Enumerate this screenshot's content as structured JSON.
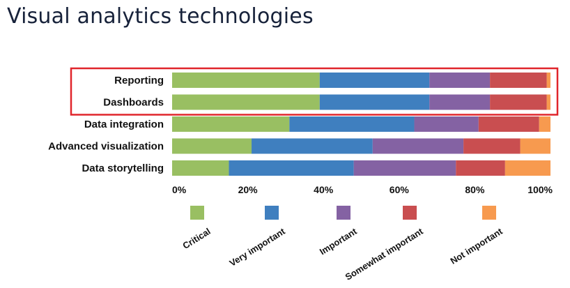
{
  "page_title": "Visual analytics technologies",
  "chart_data": {
    "type": "bar",
    "orientation": "horizontal",
    "stacked": true,
    "title": "Visual analytics technologies",
    "categories": [
      "Reporting",
      "Dashboards",
      "Data integration",
      "Advanced visualization",
      "Data storytelling"
    ],
    "series": [
      {
        "name": "Critical",
        "color": "#99bf62",
        "values": [
          39,
          39,
          31,
          21,
          15
        ]
      },
      {
        "name": "Very important",
        "color": "#3f7fbf",
        "values": [
          29,
          29,
          33,
          32,
          33
        ]
      },
      {
        "name": "Important",
        "color": "#8462a3",
        "values": [
          16,
          16,
          17,
          24,
          27
        ]
      },
      {
        "name": "Somewhat important",
        "color": "#c94e50",
        "values": [
          15,
          15,
          16,
          15,
          13
        ]
      },
      {
        "name": "Not important",
        "color": "#f79a4f",
        "values": [
          1,
          1,
          3,
          8,
          12
        ]
      }
    ],
    "xlim": [
      0,
      100
    ],
    "x_ticks": [
      "0%",
      "20%",
      "40%",
      "60%",
      "80%",
      "100%"
    ],
    "x_tick_values": [
      0,
      20,
      40,
      60,
      80,
      100
    ],
    "highlight": {
      "categories": [
        "Reporting",
        "Dashboards"
      ],
      "color": "#e0252b"
    },
    "legend_position": "bottom",
    "grid": false
  }
}
